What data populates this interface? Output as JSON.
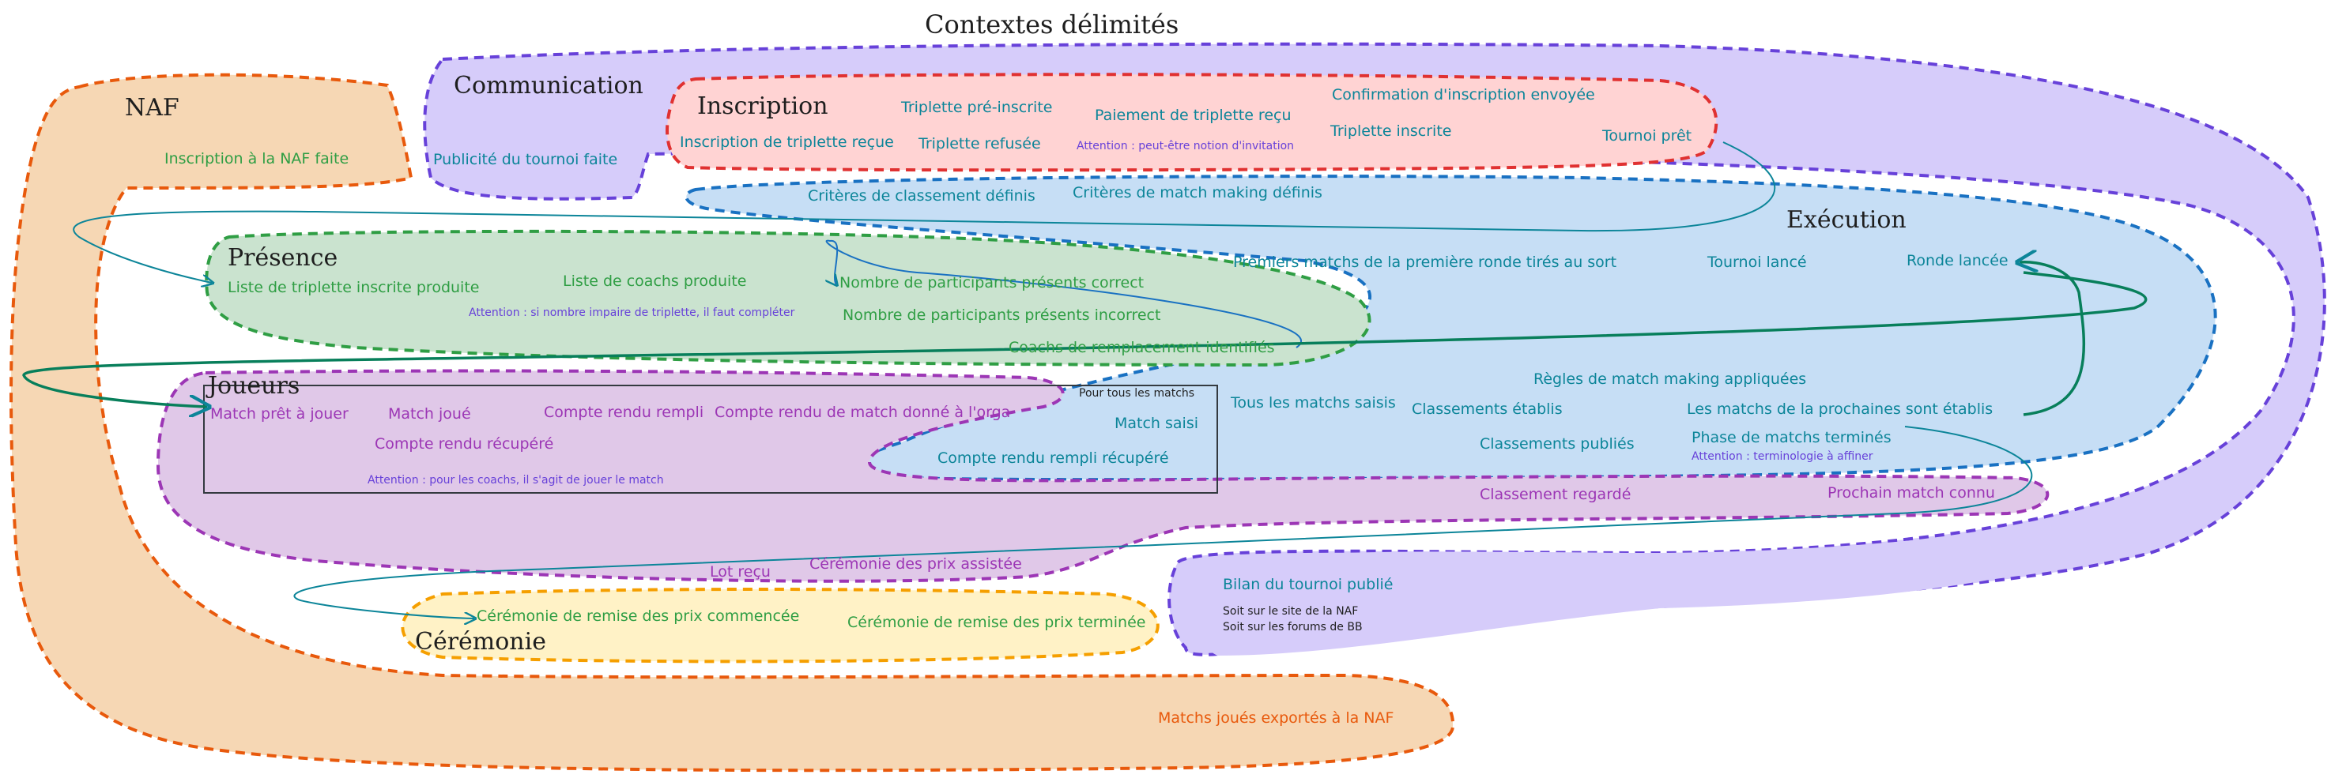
{
  "title": "Contextes délimités",
  "contexts": {
    "naf": "NAF",
    "communication": "Communication",
    "inscription": "Inscription",
    "presence": "Présence",
    "execution": "Exécution",
    "joueurs": "Joueurs",
    "ceremonie": "Cérémonie"
  },
  "events": {
    "naf_inscription": "Inscription à la NAF faite",
    "publicite": "Publicité du tournoi faite",
    "triplette_pre_inscrite": "Triplette pré-inscrite",
    "paiement_recu": "Paiement de triplette reçu",
    "confirmation_envoyee": "Confirmation d'inscription envoyée",
    "inscription_recue": "Inscription de triplette reçue",
    "triplette_refusee": "Triplette refusée",
    "triplette_inscrite": "Triplette inscrite",
    "tournoi_pret": "Tournoi prêt",
    "criteres_classement": "Critères de classement définis",
    "criteres_matchmaking": "Critères de match making définis",
    "liste_triplette": "Liste de triplette inscrite produite",
    "liste_coachs": "Liste de coachs produite",
    "participants_correct": "Nombre de participants présents correct",
    "participants_incorrect": "Nombre de participants présents incorrect",
    "coachs_remplacement": "Coachs de remplacement identifiés",
    "premiers_matchs": "Premiers matchs de la première ronde tirés au sort",
    "tournoi_lance": "Tournoi lancé",
    "ronde_lancee": "Ronde lancée",
    "regles_matchmaking": "Règles de match making appliquées",
    "tous_matchs_saisis": "Tous les matchs saisis",
    "classements_etablis": "Classements établis",
    "prochains_matchs": "Les matchs de la prochaines sont établis",
    "classements_publies": "Classements publiés",
    "phase_terminee": "Phase de matchs terminés",
    "match_saisi": "Match saisi",
    "compte_rendu_rempli_recupere": "Compte rendu rempli récupéré",
    "match_pret": "Match prêt à jouer",
    "match_joue": "Match joué",
    "compte_rendu_rempli": "Compte rendu rempli",
    "compte_rendu_donne": "Compte rendu de match donné à l'orga",
    "compte_rendu_recupere": "Compte rendu récupéré",
    "classement_regarde": "Classement regardé",
    "prochain_match_connu": "Prochain match connu",
    "lot_recu": "Lot reçu",
    "ceremonie_assistee": "Cérémonie des prix assistée",
    "bilan_publie": "Bilan du tournoi publié",
    "ceremonie_commencee": "Cérémonie de remise des prix commencée",
    "ceremonie_terminee": "Cérémonie de remise des prix terminée",
    "matchs_exportes": "Matchs joués exportés à la NAF"
  },
  "notes": {
    "invitation": "Attention : peut-être notion d'invitation",
    "impaire": "Attention : si nombre impaire de triplette, il faut compléter",
    "coachs_jouer": "Attention : pour les coachs, il s'agit de jouer le match",
    "terminologie": "Attention : terminologie à affiner",
    "pour_tous": "Pour tous les matchs",
    "site_naf": "Soit sur le site de la NAF",
    "forums_bb": "Soit sur les forums de BB"
  },
  "colors": {
    "naf": "#e8590c",
    "communication": "#6741d9",
    "inscription": "#e03131",
    "presence": "#2f9e44",
    "execution": "#1971c2",
    "joueurs": "#9c36b5",
    "ceremonie": "#f59f00",
    "arrows": "#0c8599"
  }
}
